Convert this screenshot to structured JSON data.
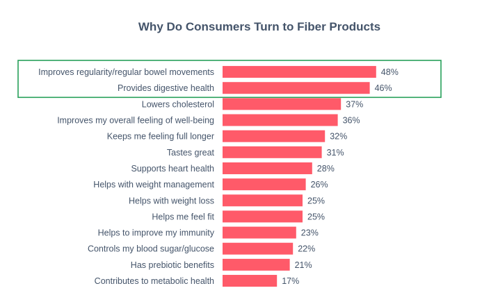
{
  "chart_data": {
    "type": "bar",
    "orientation": "horizontal",
    "title": "Why Do Consumers Turn to Fiber Products",
    "xlabel": "",
    "ylabel": "",
    "categories": [
      "Improves regularity/regular bowel movements",
      "Provides digestive health",
      "Lowers cholesterol",
      "Improves my overall feeling of well-being",
      "Keeps me feeling full longer",
      "Tastes great",
      "Supports heart health",
      "Helps with weight management",
      "Helps with weight loss",
      "Helps me feel fit",
      "Helps to improve my immunity",
      "Controls my blood sugar/glucose",
      "Has prebiotic benefits",
      "Contributes to metabolic health"
    ],
    "values": [
      48,
      46,
      37,
      36,
      32,
      31,
      28,
      26,
      25,
      25,
      23,
      22,
      21,
      17
    ],
    "value_labels": [
      "48%",
      "46%",
      "37%",
      "36%",
      "32%",
      "31%",
      "28%",
      "26%",
      "25%",
      "25%",
      "23%",
      "22%",
      "21%",
      "17%"
    ],
    "unit": "%",
    "grid": false,
    "legend": "none",
    "highlighted_categories": [
      0,
      1
    ],
    "colors": {
      "bar": "#FF5A69",
      "text": "#44546A",
      "title": "#44546A",
      "highlight_box": "#27A05A"
    }
  }
}
